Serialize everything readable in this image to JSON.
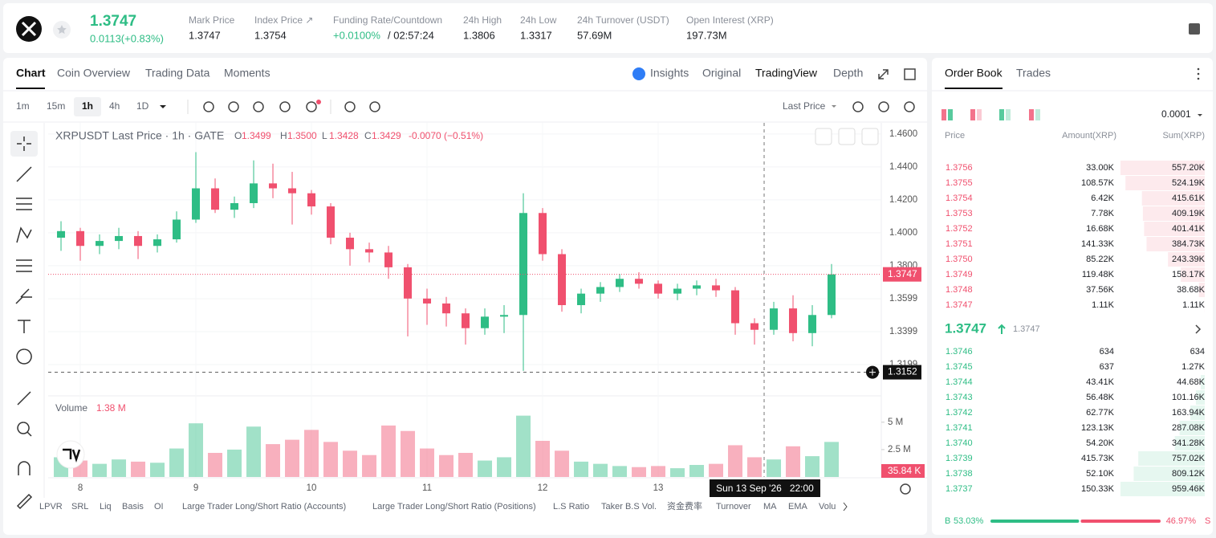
{
  "header": {
    "last_price": "1.3747",
    "change": "0.0113(+0.83%)",
    "stats": [
      {
        "label": "Mark Price",
        "value": "1.3747"
      },
      {
        "label": "Index Price ↗",
        "value": "1.3754"
      },
      {
        "label": "Funding Rate/Countdown",
        "value": "+0.0100%",
        "value2": "/ 02:57:24"
      },
      {
        "label": "24h High",
        "value": "1.3806"
      },
      {
        "label": "24h Low",
        "value": "1.3317"
      },
      {
        "label": "24h Turnover (USDT)",
        "value": "57.69M"
      },
      {
        "label": "Open Interest (XRP)",
        "value": "197.73M"
      }
    ]
  },
  "chart_panel": {
    "tabs": [
      "Chart",
      "Coin Overview",
      "Trading Data",
      "Moments"
    ],
    "view_tabs": [
      "Insights",
      "Original",
      "TradingView",
      "Depth"
    ],
    "intervals": [
      "1m",
      "15m",
      "1h",
      "4h",
      "1D"
    ],
    "price_source": "Last Price",
    "legend": {
      "symbol": "XRPUSDT Last Price · 1h · GATE",
      "ohlc": [
        {
          "key": "O",
          "value": "1.3499"
        },
        {
          "key": "H",
          "value": "1.3500"
        },
        {
          "key": "L",
          "value": "1.3428"
        },
        {
          "key": "C",
          "value": "1.3429"
        }
      ],
      "change": "-0.0070 (−0.51%)"
    },
    "crosshair_price": "1.3152",
    "crosshair_time": "Sun 13 Sep '26   22:00",
    "current_price": "1.3747",
    "volume_label": "Volume",
    "volume_value": "1.38 M",
    "volume_tag": "35.84 K",
    "indicators": [
      "LPVR",
      "SRL",
      "Liq",
      "Basis",
      "OI",
      "Large Trader Long/Short Ratio (Accounts)",
      "Large Trader Long/Short Ratio (Positions)",
      "L.S Ratio",
      "Taker B.S Vol.",
      "资金费率",
      "Turnover",
      "MA",
      "EMA",
      "Volu"
    ]
  },
  "chart_data": {
    "type": "candlestick",
    "up_color": "#2ebd85",
    "down_color": "#f0506e",
    "grid": true,
    "x": [
      -4,
      0,
      4,
      8,
      12,
      16,
      20,
      24,
      28,
      32,
      36,
      40,
      44,
      48,
      52,
      56,
      60,
      64,
      68,
      72,
      76,
      80,
      84,
      88,
      92,
      96,
      100,
      104,
      108,
      112,
      116,
      120,
      124,
      128,
      132,
      136,
      140,
      144,
      148,
      152,
      156
    ],
    "open": [
      1.397,
      1.401,
      1.392,
      1.395,
      1.398,
      1.392,
      1.396,
      1.408,
      1.427,
      1.414,
      1.418,
      1.43,
      1.427,
      1.424,
      1.416,
      1.397,
      1.39,
      1.388,
      1.379,
      1.36,
      1.357,
      1.351,
      1.342,
      1.349,
      1.35,
      1.412,
      1.387,
      1.356,
      1.363,
      1.367,
      1.372,
      1.369,
      1.363,
      1.366,
      1.368,
      1.365,
      1.345,
      1.341,
      1.354,
      1.339,
      1.35
    ],
    "high": [
      1.407,
      1.403,
      1.399,
      1.403,
      1.401,
      1.399,
      1.413,
      1.449,
      1.433,
      1.422,
      1.444,
      1.442,
      1.437,
      1.426,
      1.418,
      1.4,
      1.394,
      1.392,
      1.381,
      1.366,
      1.361,
      1.354,
      1.354,
      1.356,
      1.424,
      1.415,
      1.39,
      1.366,
      1.37,
      1.375,
      1.376,
      1.371,
      1.369,
      1.371,
      1.372,
      1.367,
      1.348,
      1.358,
      1.362,
      1.356,
      1.381
    ],
    "low": [
      1.389,
      1.383,
      1.387,
      1.39,
      1.384,
      1.388,
      1.394,
      1.406,
      1.412,
      1.409,
      1.415,
      1.421,
      1.405,
      1.411,
      1.393,
      1.38,
      1.382,
      1.372,
      1.337,
      1.344,
      1.343,
      1.332,
      1.338,
      1.339,
      1.316,
      1.383,
      1.352,
      1.351,
      1.358,
      1.364,
      1.366,
      1.36,
      1.359,
      1.362,
      1.361,
      1.338,
      1.332,
      1.338,
      1.334,
      1.331,
      1.348
    ],
    "close": [
      1.401,
      1.392,
      1.395,
      1.398,
      1.392,
      1.396,
      1.408,
      1.427,
      1.414,
      1.418,
      1.43,
      1.427,
      1.424,
      1.416,
      1.397,
      1.39,
      1.388,
      1.379,
      1.36,
      1.357,
      1.351,
      1.342,
      1.349,
      1.35,
      1.412,
      1.387,
      1.356,
      1.363,
      1.367,
      1.372,
      1.369,
      1.363,
      1.366,
      1.368,
      1.365,
      1.345,
      1.341,
      1.354,
      1.339,
      1.35,
      1.3747
    ],
    "volume": [
      1800000,
      1500000,
      1200000,
      1600000,
      1400000,
      1300000,
      2600000,
      4900000,
      2200000,
      2500000,
      4600000,
      3000000,
      3400000,
      4300000,
      3200000,
      2400000,
      2000000,
      4700000,
      4200000,
      2600000,
      2000000,
      2200000,
      1500000,
      1800000,
      5600000,
      3300000,
      2400000,
      1400000,
      1200000,
      1000000,
      900000,
      1000000,
      800000,
      1100000,
      1200000,
      2900000,
      1800000,
      1600000,
      2800000,
      1900000,
      3200000
    ],
    "xlim": [
      -6.67,
      166.33
    ],
    "xticks": [
      {
        "value": 0,
        "label": "8"
      },
      {
        "value": 24,
        "label": "9"
      },
      {
        "value": 48,
        "label": "10"
      },
      {
        "value": 72,
        "label": "11"
      },
      {
        "value": 96,
        "label": "12"
      },
      {
        "value": 120,
        "label": "13"
      }
    ],
    "ylim": [
      1.3023,
      1.4668
    ],
    "yticks": [
      {
        "value": 1.46,
        "label": "1.4600"
      },
      {
        "value": 1.44,
        "label": "1.4400"
      },
      {
        "value": 1.42,
        "label": "1.4200"
      },
      {
        "value": 1.4,
        "label": "1.4000"
      },
      {
        "value": 1.38,
        "label": "1.3800"
      },
      1.3599,
      1.3399,
      1.3199
    ],
    "volume_ylim": [
      0,
      6600000
    ],
    "volume_yticks": [
      {
        "value": 2500000,
        "label": "2.5 M"
      },
      {
        "value": 5000000,
        "label": "5 M"
      }
    ]
  },
  "order_book": {
    "tabs": [
      "Order Book",
      "Trades"
    ],
    "precision": "0.0001",
    "columns": [
      "Price",
      "Amount(XRP)",
      "Sum(XRP)"
    ],
    "asks": [
      [
        "1.3756",
        "33.00K",
        "557.20K"
      ],
      [
        "1.3755",
        "108.57K",
        "524.19K"
      ],
      [
        "1.3754",
        "6.42K",
        "415.61K"
      ],
      [
        "1.3753",
        "7.78K",
        "409.19K"
      ],
      [
        "1.3752",
        "16.68K",
        "401.41K"
      ],
      [
        "1.3751",
        "141.33K",
        "384.73K"
      ],
      [
        "1.3750",
        "85.22K",
        "243.39K"
      ],
      [
        "1.3749",
        "119.48K",
        "158.17K"
      ],
      [
        "1.3748",
        "37.56K",
        "38.68K"
      ],
      [
        "1.3747",
        "1.11K",
        "1.11K"
      ]
    ],
    "mid": {
      "price": "1.3747",
      "mark": "1.3747"
    },
    "bids": [
      [
        "1.3746",
        "634",
        "634"
      ],
      [
        "1.3745",
        "637",
        "1.27K"
      ],
      [
        "1.3744",
        "43.41K",
        "44.68K"
      ],
      [
        "1.3743",
        "56.48K",
        "101.16K"
      ],
      [
        "1.3742",
        "62.77K",
        "163.94K"
      ],
      [
        "1.3741",
        "123.13K",
        "287.08K"
      ],
      [
        "1.3740",
        "54.20K",
        "341.28K"
      ],
      [
        "1.3739",
        "415.73K",
        "757.02K"
      ],
      [
        "1.3738",
        "52.10K",
        "809.12K"
      ],
      [
        "1.3737",
        "150.33K",
        "959.46K"
      ]
    ],
    "ratio": {
      "buy_label": "B",
      "buy": "53.03%",
      "sell": "46.97%",
      "sell_label": "S"
    }
  }
}
